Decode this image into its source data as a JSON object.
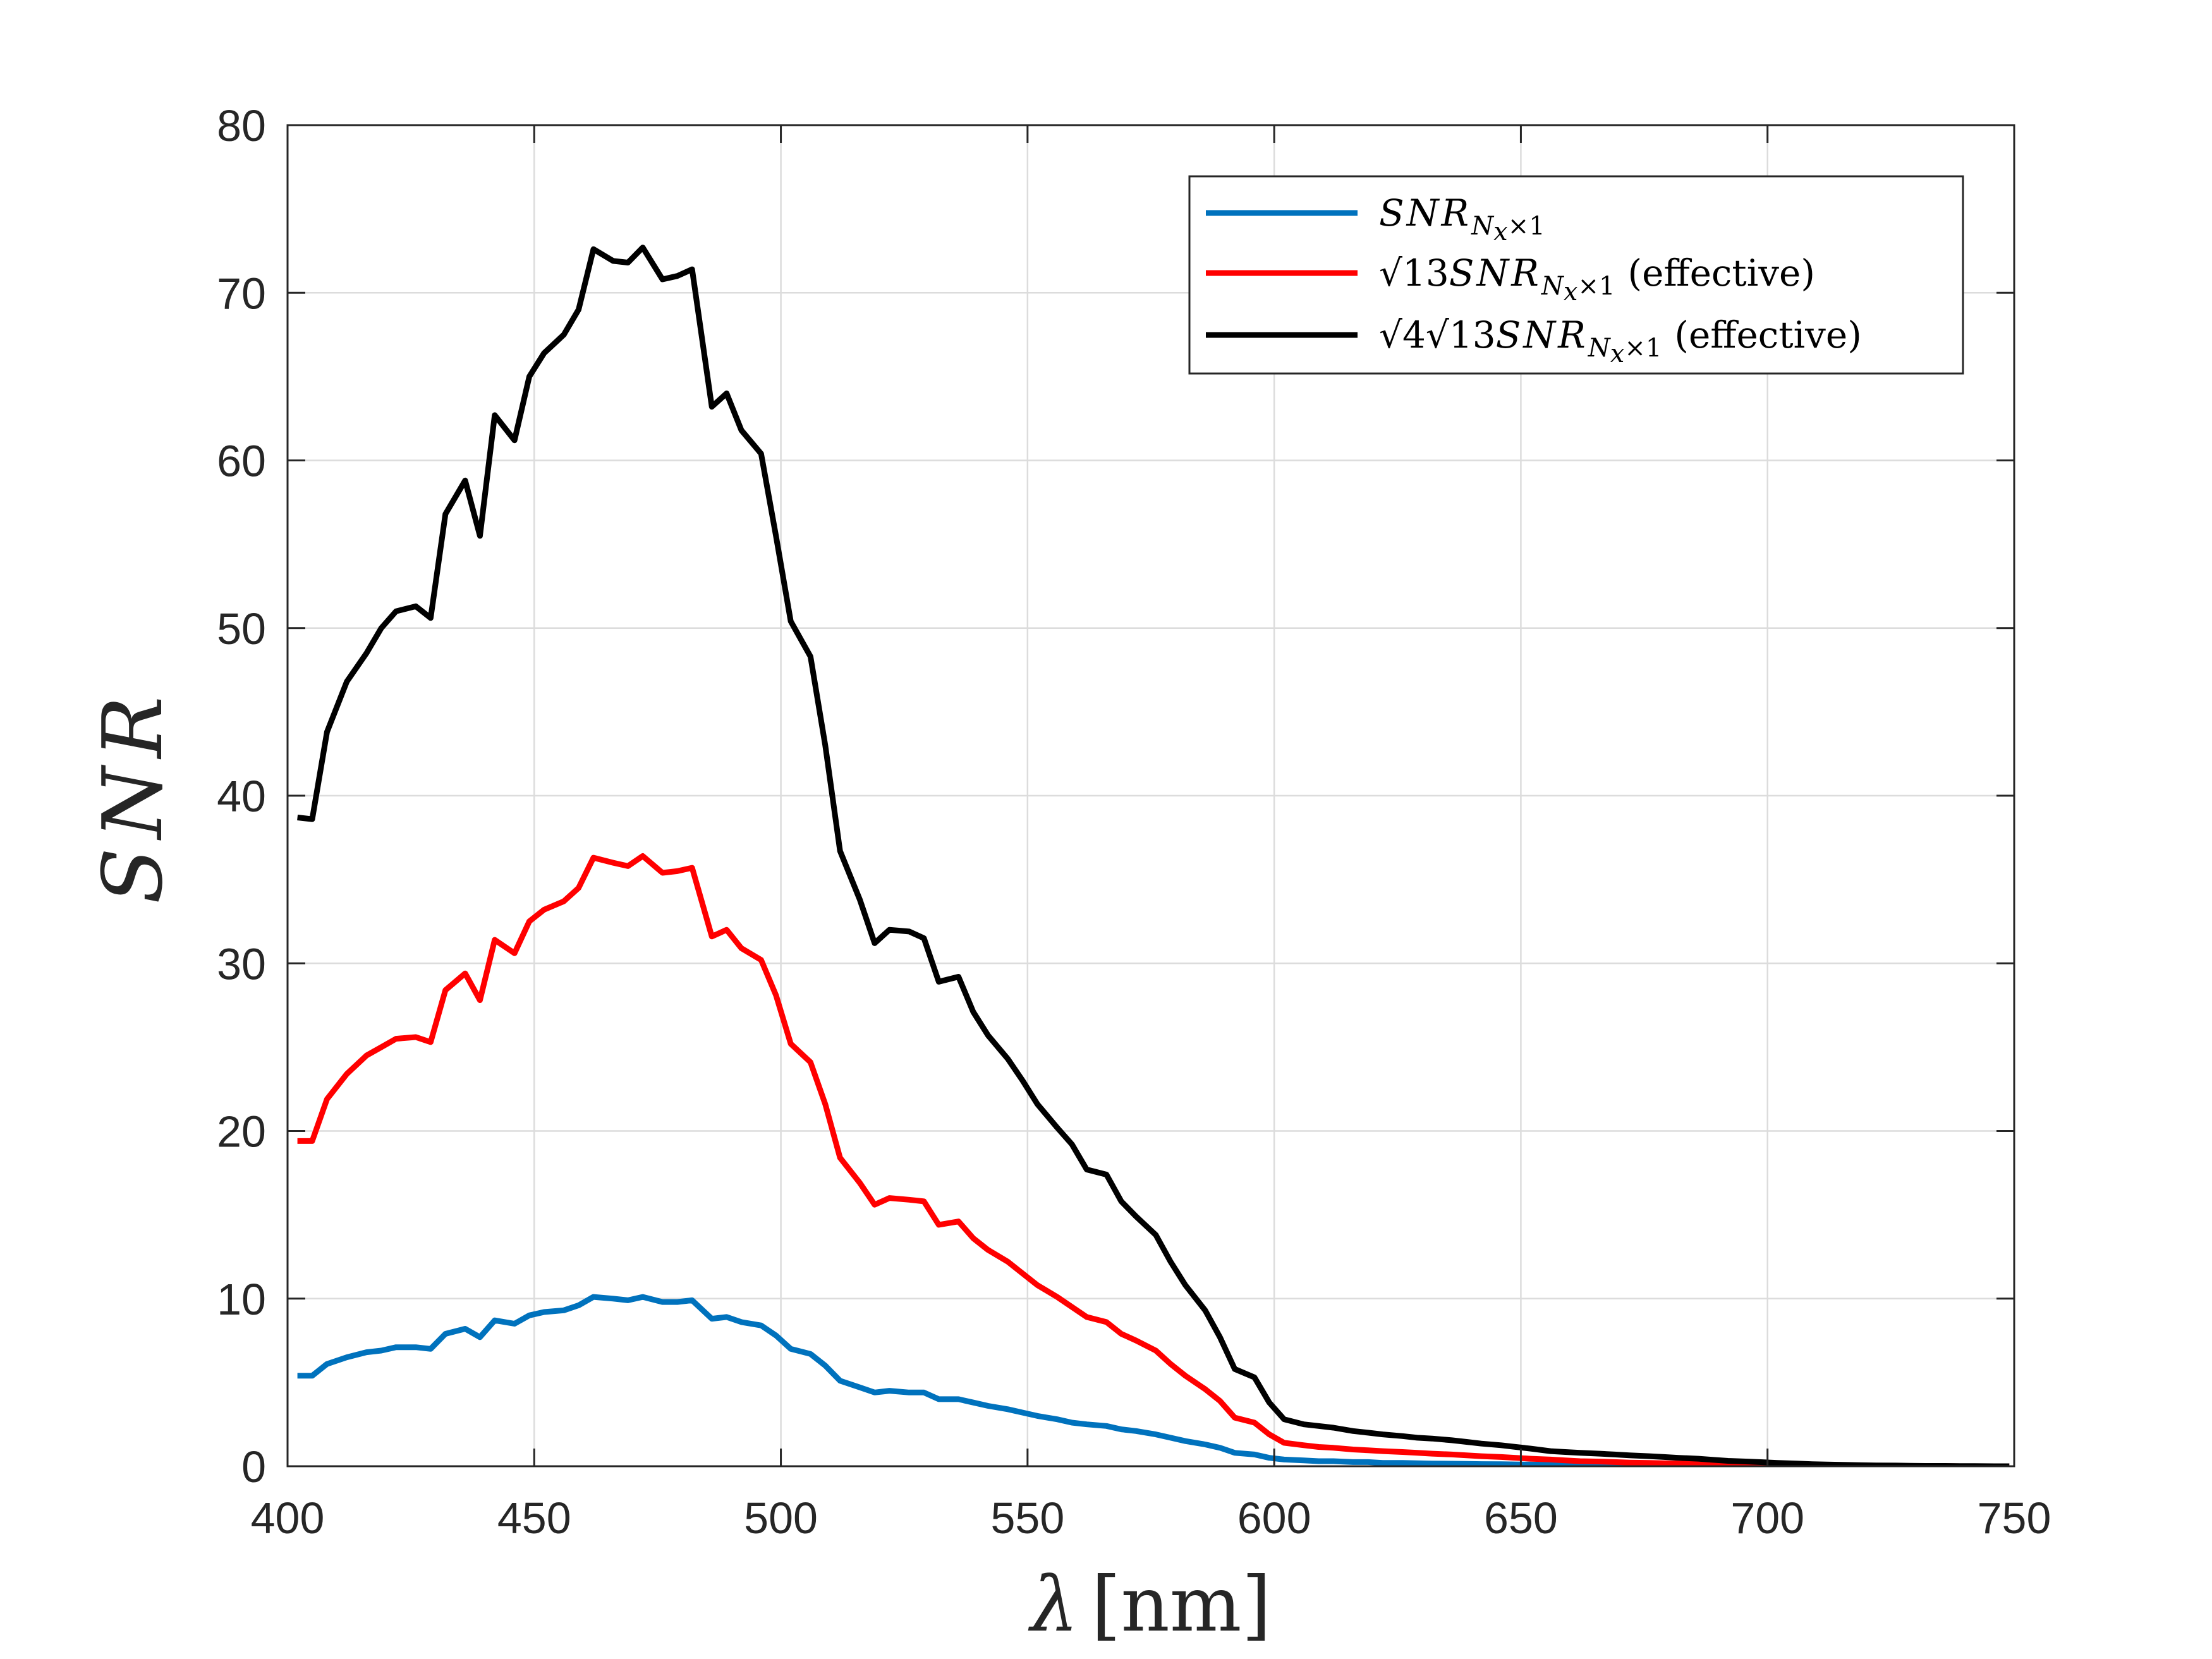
{
  "chart_data": {
    "type": "line",
    "title": "",
    "xlabel_symbol": "λ",
    "xlabel_unit": "[nm]",
    "ylabel": "SNR",
    "xlim": [
      400,
      750
    ],
    "ylim": [
      0,
      80
    ],
    "xticks": [
      400,
      450,
      500,
      550,
      600,
      650,
      700,
      750
    ],
    "yticks": [
      0,
      10,
      20,
      30,
      40,
      50,
      60,
      70,
      80
    ],
    "grid": true,
    "legend_position": "top-right",
    "x": [
      402,
      405,
      408,
      412,
      416,
      419,
      422,
      426,
      429,
      432,
      436,
      439,
      442,
      446,
      449,
      452,
      456,
      459,
      462,
      466,
      469,
      472,
      476,
      479,
      482,
      486,
      489,
      492,
      496,
      499,
      502,
      506,
      509,
      512,
      516,
      519,
      522,
      526,
      529,
      532,
      536,
      539,
      542,
      546,
      549,
      552,
      556,
      559,
      562,
      566,
      569,
      572,
      576,
      579,
      582,
      586,
      589,
      592,
      596,
      599,
      602,
      606,
      609,
      612,
      616,
      619,
      622,
      626,
      629,
      632,
      636,
      639,
      642,
      646,
      649,
      652,
      656,
      659,
      662,
      666,
      669,
      672,
      676,
      679,
      682,
      686,
      689,
      692,
      696,
      699,
      702,
      706,
      709,
      712,
      716,
      719,
      722,
      726,
      729,
      732,
      736,
      739,
      742,
      746,
      749
    ],
    "series": [
      {
        "name_parts": {
          "pre": "",
          "main": "SNR",
          "sub": "N",
          "subsub": "x",
          "subtail": "×1",
          "post": ""
        },
        "color": "#0072BD",
        "values": [
          5.4,
          5.4,
          6.1,
          6.5,
          6.8,
          6.9,
          7.1,
          7.1,
          7.0,
          7.9,
          8.2,
          7.7,
          8.7,
          8.5,
          9.0,
          9.2,
          9.3,
          9.6,
          10.1,
          10.0,
          9.9,
          10.1,
          9.8,
          9.8,
          9.9,
          8.8,
          8.9,
          8.6,
          8.4,
          7.8,
          7.0,
          6.7,
          6.0,
          5.1,
          4.7,
          4.4,
          4.5,
          4.4,
          4.4,
          4.0,
          4.0,
          3.8,
          3.6,
          3.4,
          3.2,
          3.0,
          2.8,
          2.6,
          2.5,
          2.4,
          2.2,
          2.1,
          1.9,
          1.7,
          1.5,
          1.3,
          1.1,
          0.8,
          0.7,
          0.5,
          0.4,
          0.35,
          0.3,
          0.3,
          0.25,
          0.25,
          0.2,
          0.2,
          0.18,
          0.16,
          0.15,
          0.14,
          0.13,
          0.12,
          0.11,
          0.1,
          0.09,
          0.08,
          0.07,
          0.06,
          0.05,
          0.05,
          0.04,
          0.04,
          0.03,
          0.03,
          0.03,
          0.02,
          0.02,
          0.02,
          0.02,
          0.01,
          0.01,
          0.01,
          0.01,
          0.01,
          0.01,
          0.01,
          0.01,
          0,
          0,
          0,
          0,
          0,
          0
        ]
      },
      {
        "name_parts": {
          "pre": "√13",
          "main": "SNR",
          "sub": "N",
          "subsub": "x",
          "subtail": "×1",
          "post": "(effective)"
        },
        "color": "#FF0000",
        "values": [
          19.4,
          19.4,
          21.9,
          23.4,
          24.5,
          25.0,
          25.5,
          25.6,
          25.3,
          28.4,
          29.4,
          27.8,
          31.4,
          30.6,
          32.5,
          33.2,
          33.7,
          34.5,
          36.3,
          36.0,
          35.8,
          36.4,
          35.4,
          35.5,
          35.7,
          31.6,
          32.0,
          30.9,
          30.2,
          28.1,
          25.2,
          24.1,
          21.6,
          18.4,
          16.9,
          15.6,
          16.0,
          15.9,
          15.8,
          14.4,
          14.6,
          13.6,
          12.9,
          12.2,
          11.5,
          10.8,
          10.1,
          9.5,
          8.9,
          8.6,
          7.9,
          7.5,
          6.9,
          6.1,
          5.4,
          4.6,
          3.9,
          2.9,
          2.6,
          1.9,
          1.4,
          1.25,
          1.15,
          1.1,
          1.0,
          0.95,
          0.9,
          0.85,
          0.8,
          0.75,
          0.7,
          0.65,
          0.6,
          0.55,
          0.5,
          0.45,
          0.4,
          0.35,
          0.3,
          0.28,
          0.25,
          0.22,
          0.2,
          0.18,
          0.16,
          0.14,
          0.12,
          0.1,
          0.09,
          0.08,
          0.07,
          0.06,
          0.05,
          0.04,
          0.03,
          0.03,
          0.02,
          0.02,
          0.01,
          0.01,
          0.01,
          0,
          0,
          0,
          0
        ]
      },
      {
        "name_parts": {
          "pre": "√4√13",
          "main": "SNR",
          "sub": "N",
          "subsub": "x",
          "subtail": "×1",
          "post": "(effective)"
        },
        "color": "#000000",
        "values": [
          38.7,
          38.6,
          43.8,
          46.8,
          48.5,
          50.0,
          51.0,
          51.3,
          50.6,
          56.8,
          58.8,
          55.5,
          62.7,
          61.2,
          65.0,
          66.4,
          67.5,
          69.0,
          72.6,
          71.9,
          71.8,
          72.7,
          70.8,
          71.0,
          71.4,
          63.2,
          64.0,
          61.8,
          60.4,
          55.5,
          50.4,
          48.3,
          43.0,
          36.7,
          33.8,
          31.2,
          32.0,
          31.9,
          31.5,
          28.9,
          29.2,
          27.1,
          25.7,
          24.3,
          23.0,
          21.6,
          20.2,
          19.2,
          17.7,
          17.4,
          15.8,
          14.9,
          13.8,
          12.2,
          10.8,
          9.3,
          7.7,
          5.8,
          5.3,
          3.8,
          2.8,
          2.5,
          2.4,
          2.3,
          2.1,
          2.0,
          1.9,
          1.8,
          1.7,
          1.65,
          1.55,
          1.45,
          1.35,
          1.25,
          1.15,
          1.05,
          0.9,
          0.85,
          0.8,
          0.75,
          0.7,
          0.65,
          0.6,
          0.55,
          0.5,
          0.45,
          0.38,
          0.32,
          0.28,
          0.24,
          0.2,
          0.16,
          0.12,
          0.1,
          0.08,
          0.06,
          0.05,
          0.04,
          0.03,
          0.02,
          0.02,
          0.01,
          0.01,
          0,
          0
        ]
      }
    ]
  }
}
